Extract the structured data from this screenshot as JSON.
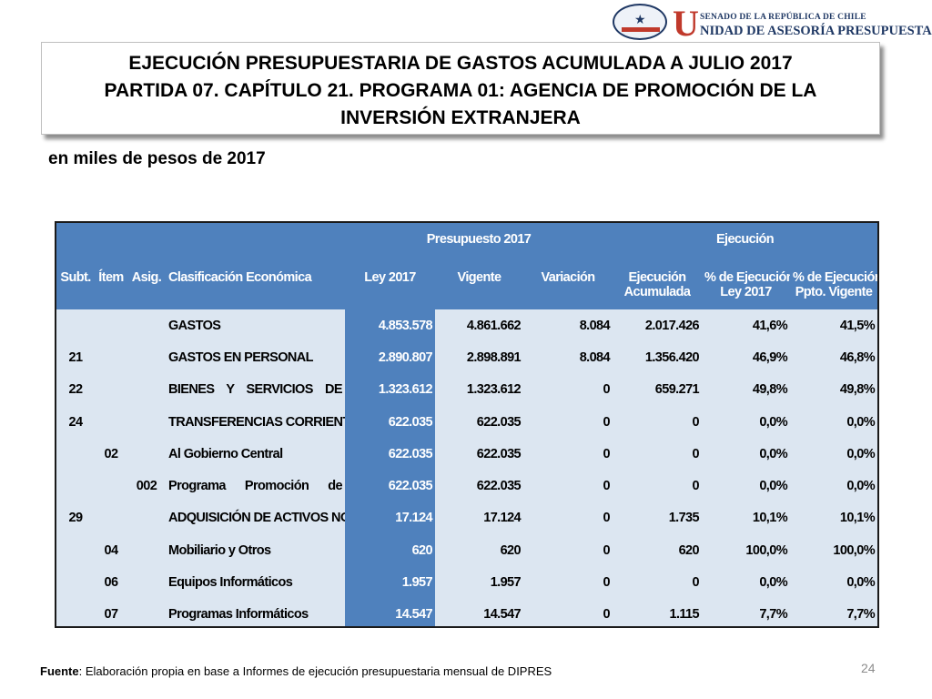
{
  "logo": {
    "senado": "SENADO DE LA REPÚBLICA DE CHILE",
    "unidad_first": "U",
    "unidad_rest": "NIDAD DE ASESORÍA PRESUPUESTARIA"
  },
  "title": {
    "line1": "EJECUCIÓN PRESUPUESTARIA DE GASTOS ACUMULADA A JULIO 2017",
    "line2": "PARTIDA 07. CAPÍTULO 21. PROGRAMA 01: AGENCIA DE PROMOCIÓN DE LA",
    "line3": "INVERSIÓN EXTRANJERA"
  },
  "subtitle": "en miles de pesos de 2017",
  "table": {
    "group_presupuesto": "Presupuesto 2017",
    "group_ejecucion": "Ejecución",
    "headers": {
      "subt": "Subt.",
      "item": "Ítem",
      "asig": "Asig.",
      "clasificacion": "Clasificación Económica",
      "ley": "Ley 2017",
      "vigente": "Vigente",
      "variacion": "Variación",
      "ejec_1": "Ejecución",
      "ejec_2": "Acumulada",
      "pct_ley_1": "% de Ejecución",
      "pct_ley_2": "Ley 2017",
      "pct_vig_1": "% de Ejecución",
      "pct_vig_2": "Ppto. Vigente"
    },
    "rows": [
      {
        "subt": "",
        "item": "",
        "asig": "",
        "desc": "GASTOS",
        "ley": "4.853.578",
        "vigente": "4.861.662",
        "variacion": "8.084",
        "ejecucion": "2.017.426",
        "pct_ley": "41,6%",
        "pct_vig": "41,5%"
      },
      {
        "subt": "21",
        "item": "",
        "asig": "",
        "desc": "GASTOS EN PERSONAL",
        "ley": "2.890.807",
        "vigente": "2.898.891",
        "variacion": "8.084",
        "ejecucion": "1.356.420",
        "pct_ley": "46,9%",
        "pct_vig": "46,8%"
      },
      {
        "subt": "22",
        "item": "",
        "asig": "",
        "desc": "BIENES Y SERVICIOS DE",
        "ley": "1.323.612",
        "vigente": "1.323.612",
        "variacion": "0",
        "ejecucion": "659.271",
        "pct_ley": "49,8%",
        "pct_vig": "49,8%"
      },
      {
        "subt": "24",
        "item": "",
        "asig": "",
        "desc": "TRANSFERENCIAS CORRIENTES",
        "ley": "622.035",
        "vigente": "622.035",
        "variacion": "0",
        "ejecucion": "0",
        "pct_ley": "0,0%",
        "pct_vig": "0,0%"
      },
      {
        "subt": "",
        "item": "02",
        "asig": "",
        "desc": "Al Gobierno Central",
        "ley": "622.035",
        "vigente": "622.035",
        "variacion": "0",
        "ejecucion": "0",
        "pct_ley": "0,0%",
        "pct_vig": "0,0%"
      },
      {
        "subt": "",
        "item": "",
        "asig": "002",
        "desc": "Programa Promoción de",
        "ley": "622.035",
        "vigente": "622.035",
        "variacion": "0",
        "ejecucion": "0",
        "pct_ley": "0,0%",
        "pct_vig": "0,0%"
      },
      {
        "subt": "29",
        "item": "",
        "asig": "",
        "desc": "ADQUISICIÓN DE ACTIVOS NO",
        "ley": "17.124",
        "vigente": "17.124",
        "variacion": "0",
        "ejecucion": "1.735",
        "pct_ley": "10,1%",
        "pct_vig": "10,1%"
      },
      {
        "subt": "",
        "item": "04",
        "asig": "",
        "desc": "Mobiliario y Otros",
        "ley": "620",
        "vigente": "620",
        "variacion": "0",
        "ejecucion": "620",
        "pct_ley": "100,0%",
        "pct_vig": "100,0%"
      },
      {
        "subt": "",
        "item": "06",
        "asig": "",
        "desc": "Equipos Informáticos",
        "ley": "1.957",
        "vigente": "1.957",
        "variacion": "0",
        "ejecucion": "0",
        "pct_ley": "0,0%",
        "pct_vig": "0,0%"
      },
      {
        "subt": "",
        "item": "07",
        "asig": "",
        "desc": "Programas Informáticos",
        "ley": "14.547",
        "vigente": "14.547",
        "variacion": "0",
        "ejecucion": "1.115",
        "pct_ley": "7,7%",
        "pct_vig": "7,7%"
      }
    ]
  },
  "footer": {
    "fuente_label": "Fuente",
    "fuente_text": ": Elaboración propia en base  a Informes de ejecución presupuestaria mensual de DIPRES",
    "page_number": "24"
  },
  "colors": {
    "header_blue": "#4f81bd",
    "body_light_blue": "#dce6f1",
    "logo_navy": "#1f3864",
    "logo_red": "#c0392b"
  }
}
